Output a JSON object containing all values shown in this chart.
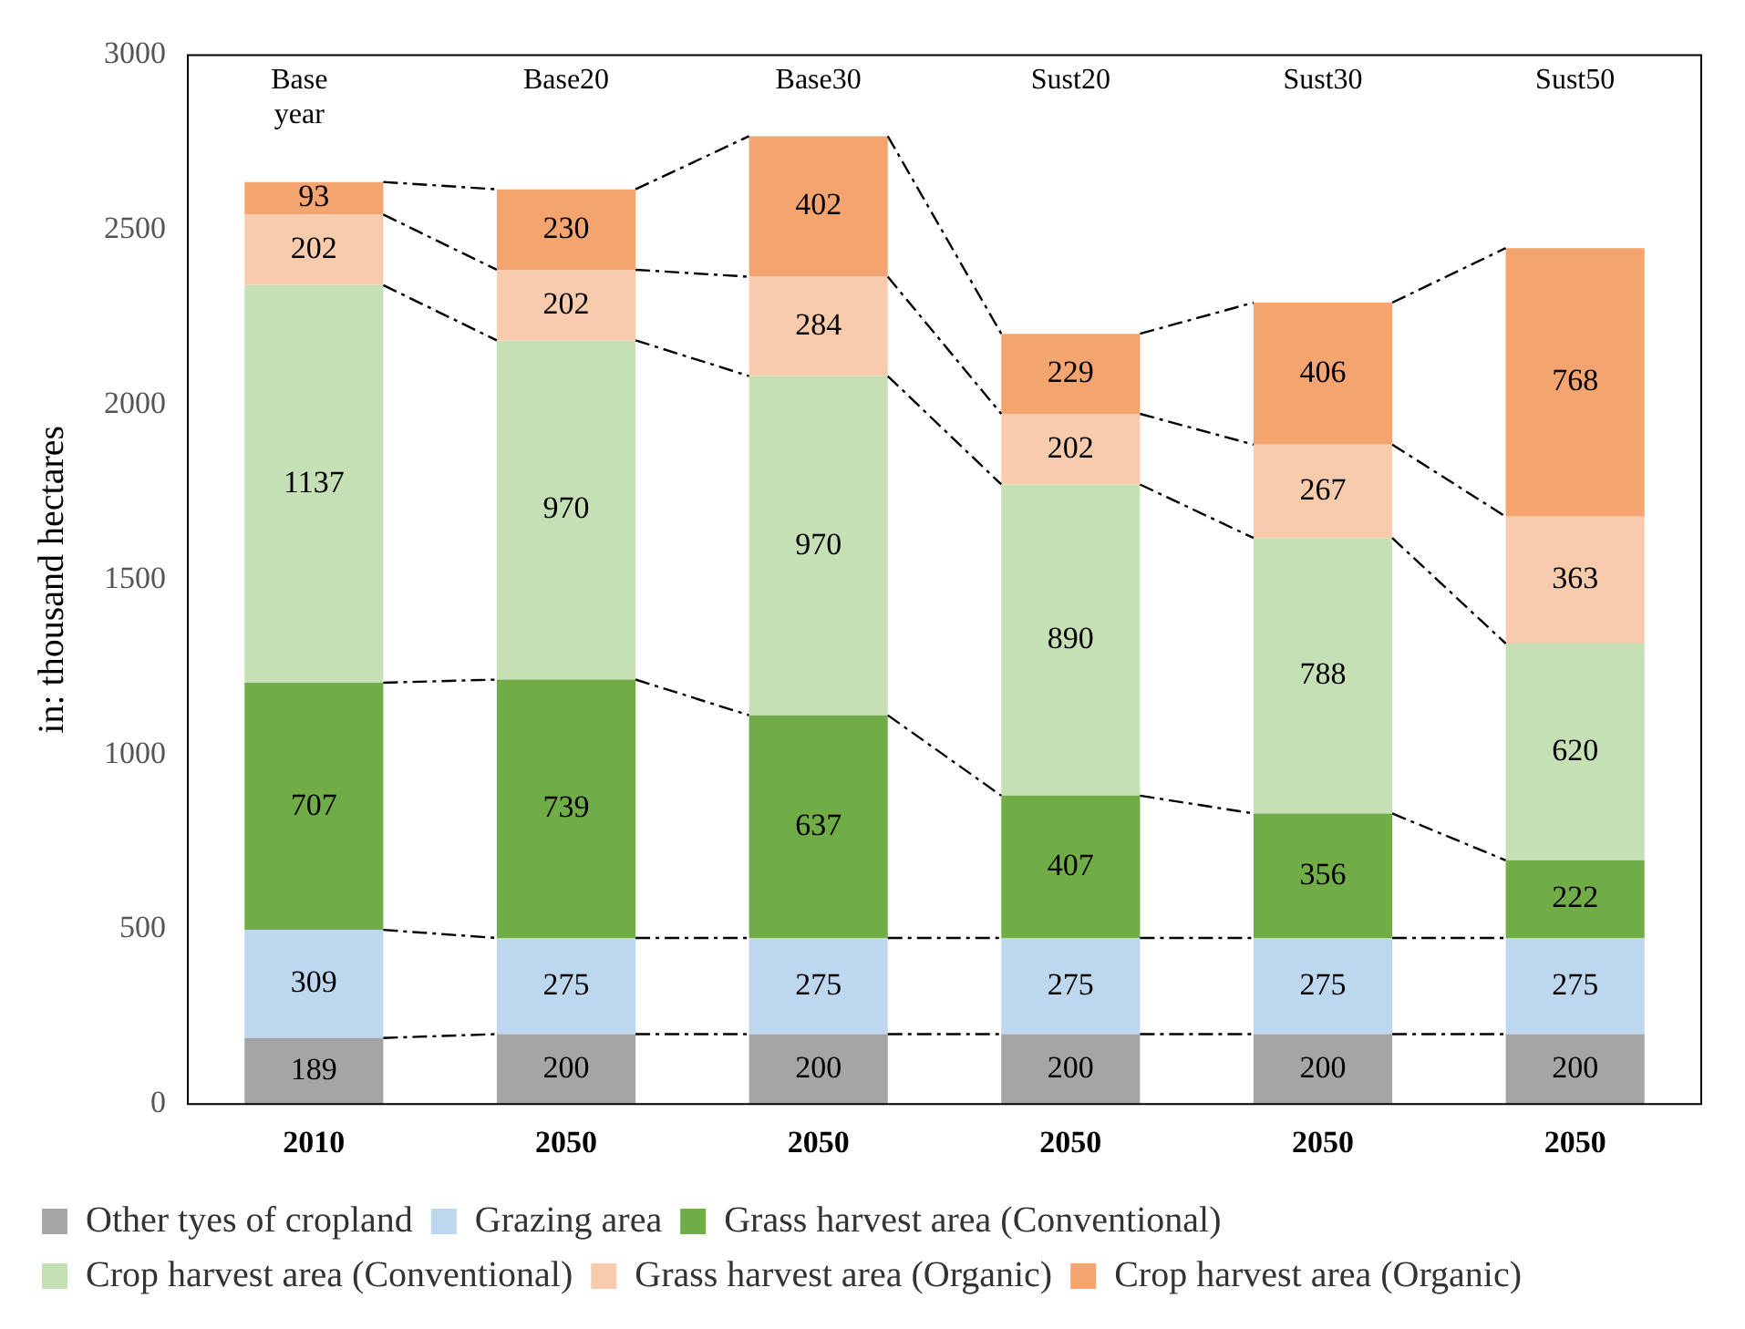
{
  "chart_data": {
    "type": "bar",
    "stacked": true,
    "ylabel": "in: thousand hectares",
    "categories": [
      "2010",
      "2050",
      "2050",
      "2050",
      "2050",
      "2050"
    ],
    "annotations": [
      "Base year",
      "Base20",
      "Base30",
      "Sust20",
      "Sust30",
      "Sust50"
    ],
    "series": [
      {
        "name": "Other tyes of cropland",
        "color": "#a5a5a5",
        "values": [
          189,
          200,
          200,
          200,
          200,
          200
        ]
      },
      {
        "name": "Grazing area",
        "color": "#bdd7ee",
        "values": [
          309,
          275,
          275,
          275,
          275,
          275
        ]
      },
      {
        "name": "Grass harvest area (Conventional)",
        "color": "#70ad47",
        "values": [
          707,
          739,
          637,
          407,
          356,
          222
        ]
      },
      {
        "name": "Crop harvest area (Conventional)",
        "color": "#c5e0b4",
        "values": [
          1137,
          970,
          970,
          890,
          788,
          620
        ]
      },
      {
        "name": "Grass harvest area (Organic)",
        "color": "#f8cbad",
        "values": [
          202,
          202,
          284,
          202,
          267,
          363
        ]
      },
      {
        "name": "Crop harvest area (Organic)",
        "color": "#f4a46e",
        "values": [
          93,
          230,
          402,
          229,
          406,
          768
        ]
      }
    ],
    "ylim": [
      0,
      3000
    ],
    "yticks": [
      0,
      500,
      1000,
      1500,
      2000,
      2500,
      3000
    ],
    "grid": false,
    "legend": "bottom",
    "data_labels": true
  }
}
